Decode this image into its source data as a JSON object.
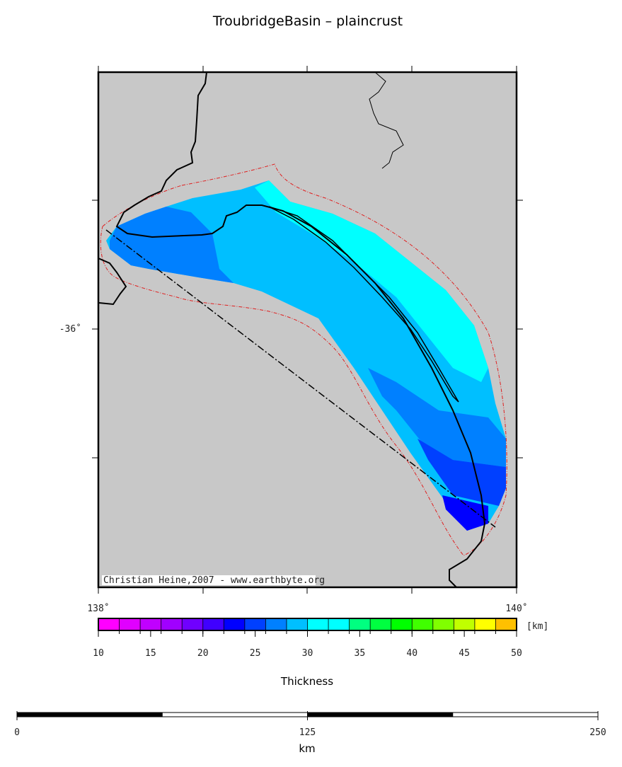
{
  "title": "TroubridgeBasin – plaincrust",
  "map": {
    "lat_labels": [
      "-36˚"
    ],
    "lon_labels": [
      "138˚",
      "140˚"
    ],
    "credit": "Christian Heine,2007 - www.earthbyte.org"
  },
  "colorbar": {
    "unit": "[km]",
    "label": "Thickness",
    "lim": [
      10,
      50
    ],
    "ticks": [
      10,
      15,
      20,
      25,
      30,
      35,
      40,
      45,
      50
    ],
    "colors": [
      "#ff00ff",
      "#e000ff",
      "#c000ff",
      "#a000ff",
      "#7000ff",
      "#4000ff",
      "#0000ff",
      "#0040ff",
      "#0080ff",
      "#00bfff",
      "#00ffff",
      "#00ffff",
      "#00ff80",
      "#00ff40",
      "#00ff00",
      "#40ff00",
      "#80ff00",
      "#c0ff00",
      "#ffff00",
      "#ffc000"
    ]
  },
  "scalebar": {
    "unit": "km",
    "lim": [
      0,
      250
    ],
    "ticks": [
      0,
      125,
      250
    ]
  }
}
